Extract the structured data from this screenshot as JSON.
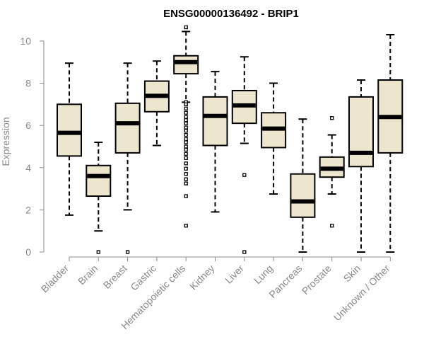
{
  "colors": {
    "box_fill": "#ede6cf",
    "box_stroke": "#000000",
    "median": "#000000",
    "axis": "#8a8a8a",
    "text_muted": "#8a8a8a"
  },
  "chart_data": {
    "type": "boxplot",
    "title": "ENSG00000136492 - BRIP1",
    "xlabel": "",
    "ylabel": "Expression",
    "ylim": [
      0,
      10.5
    ],
    "yticks": [
      0,
      2,
      4,
      6,
      8,
      10
    ],
    "categories": [
      "Bladder",
      "Brain",
      "Breast",
      "Gastric",
      "Hematopoietic cells",
      "Kidney",
      "Liver",
      "Lung",
      "Pancreas",
      "Prostate",
      "Skin",
      "Unknown / Other"
    ],
    "boxes": [
      {
        "name": "Bladder",
        "whisker_low": 1.75,
        "q1": 4.55,
        "median": 5.65,
        "q3": 7.0,
        "whisker_high": 8.95,
        "outliers": []
      },
      {
        "name": "Brain",
        "whisker_low": 1.0,
        "q1": 2.65,
        "median": 3.6,
        "q3": 4.1,
        "whisker_high": 5.2,
        "outliers": [
          0
        ]
      },
      {
        "name": "Breast",
        "whisker_low": 2.0,
        "q1": 4.7,
        "median": 6.1,
        "q3": 7.05,
        "whisker_high": 8.95,
        "outliers": [
          0
        ]
      },
      {
        "name": "Gastric",
        "whisker_low": 5.05,
        "q1": 6.65,
        "median": 7.4,
        "q3": 8.1,
        "whisker_high": 9.05,
        "outliers": []
      },
      {
        "name": "Hematopoietic cells",
        "whisker_low": 7.1,
        "q1": 8.45,
        "median": 9.0,
        "q3": 9.3,
        "whisker_high": 10.45,
        "outliers": [
          10.65,
          7.1,
          7.0,
          6.8,
          6.6,
          6.4,
          6.25,
          6.1,
          5.9,
          5.75,
          5.55,
          5.35,
          5.2,
          5.0,
          4.85,
          4.65,
          4.45,
          4.2,
          3.95,
          3.7,
          3.45,
          3.25,
          2.65,
          1.25
        ]
      },
      {
        "name": "Kidney",
        "whisker_low": 1.9,
        "q1": 5.05,
        "median": 6.45,
        "q3": 7.35,
        "whisker_high": 8.55,
        "outliers": []
      },
      {
        "name": "Liver",
        "whisker_low": 5.15,
        "q1": 6.1,
        "median": 6.95,
        "q3": 7.65,
        "whisker_high": 9.25,
        "outliers": [
          3.65,
          0
        ]
      },
      {
        "name": "Lung",
        "whisker_low": 2.75,
        "q1": 4.95,
        "median": 5.85,
        "q3": 6.6,
        "whisker_high": 8.0,
        "outliers": []
      },
      {
        "name": "Pancreas",
        "whisker_low": 0,
        "q1": 1.65,
        "median": 2.4,
        "q3": 3.7,
        "whisker_high": 6.3,
        "outliers": []
      },
      {
        "name": "Prostate",
        "whisker_low": 2.75,
        "q1": 3.55,
        "median": 3.95,
        "q3": 4.5,
        "whisker_high": 5.55,
        "outliers": [
          6.35,
          1.25
        ]
      },
      {
        "name": "Skin",
        "whisker_low": 0,
        "q1": 4.05,
        "median": 4.7,
        "q3": 7.35,
        "whisker_high": 8.15,
        "outliers": []
      },
      {
        "name": "Unknown / Other",
        "whisker_low": 0,
        "q1": 4.7,
        "median": 6.4,
        "q3": 8.15,
        "whisker_high": 10.3,
        "outliers": []
      }
    ]
  }
}
